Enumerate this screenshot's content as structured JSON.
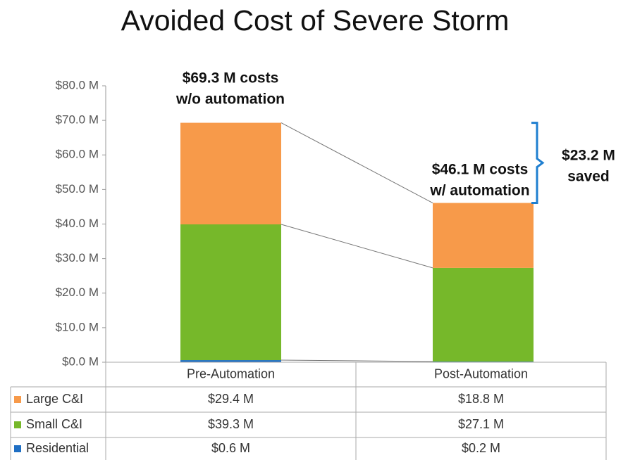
{
  "chart_data": {
    "type": "bar",
    "stacked": true,
    "title": "Avoided Cost of Severe Storm",
    "categories": [
      "Pre-Automation",
      "Post-Automation"
    ],
    "series": [
      {
        "name": "Residential",
        "color": "#1f6fc4",
        "values": [
          0.6,
          0.2
        ],
        "value_labels": [
          "$0.6 M",
          "$0.2 M"
        ]
      },
      {
        "name": "Small C&I",
        "color": "#76b82a",
        "values": [
          39.3,
          27.1
        ],
        "value_labels": [
          "$39.3 M",
          "$27.1 M"
        ]
      },
      {
        "name": "Large C&I",
        "color": "#f79a4a",
        "values": [
          29.4,
          18.8
        ],
        "value_labels": [
          "$29.4 M",
          "$18.8 M"
        ]
      }
    ],
    "ylim": [
      0,
      80
    ],
    "yticks": [
      {
        "value": 0,
        "label": "$0.0 M"
      },
      {
        "value": 10,
        "label": "$10.0 M"
      },
      {
        "value": 20,
        "label": "$20.0 M"
      },
      {
        "value": 30,
        "label": "$30.0 M"
      },
      {
        "value": 40,
        "label": "$40.0 M"
      },
      {
        "value": 50,
        "label": "$50.0 M"
      },
      {
        "value": 60,
        "label": "$60.0 M"
      },
      {
        "value": 70,
        "label": "$70.0 M"
      },
      {
        "value": 80,
        "label": "$80.0 M"
      }
    ],
    "annotations": [
      {
        "lines": [
          "$69.3 M costs",
          "w/o automation"
        ]
      },
      {
        "lines": [
          "$46.1 M costs",
          "w/ automation"
        ]
      },
      {
        "lines": [
          "$23.2 M",
          "saved"
        ]
      }
    ]
  }
}
